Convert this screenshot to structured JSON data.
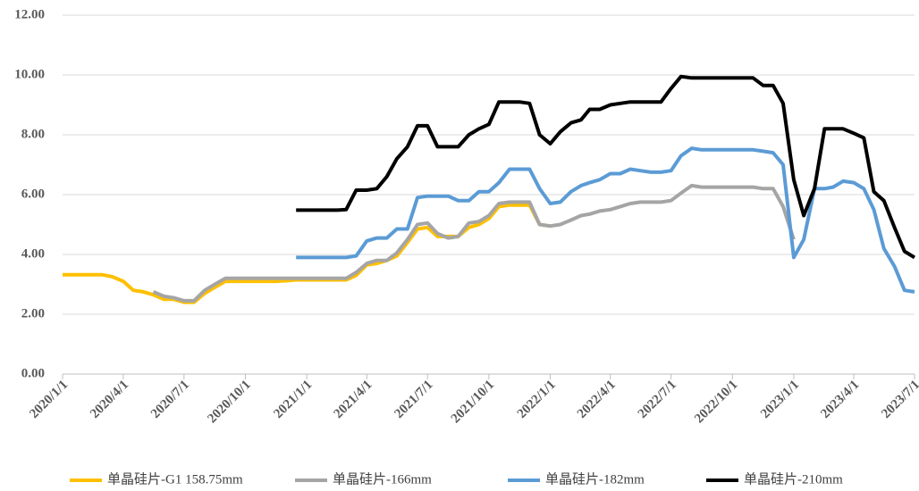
{
  "chart_data": {
    "type": "line",
    "x": [
      "2020/1/1",
      "2020/1/16",
      "2020/2/1",
      "2020/2/16",
      "2020/3/1",
      "2020/3/16",
      "2020/4/1",
      "2020/4/16",
      "2020/5/1",
      "2020/5/16",
      "2020/6/1",
      "2020/6/16",
      "2020/7/1",
      "2020/7/16",
      "2020/8/1",
      "2020/8/16",
      "2020/9/1",
      "2020/9/16",
      "2020/10/1",
      "2020/10/16",
      "2020/11/1",
      "2020/11/16",
      "2020/12/1",
      "2020/12/16",
      "2021/1/1",
      "2021/1/16",
      "2021/2/1",
      "2021/2/16",
      "2021/3/1",
      "2021/3/16",
      "2021/4/1",
      "2021/4/16",
      "2021/5/1",
      "2021/5/16",
      "2021/6/1",
      "2021/6/16",
      "2021/7/1",
      "2021/7/16",
      "2021/8/1",
      "2021/8/16",
      "2021/9/1",
      "2021/9/16",
      "2021/10/1",
      "2021/10/16",
      "2021/11/1",
      "2021/11/16",
      "2021/12/1",
      "2021/12/16",
      "2022/1/1",
      "2022/1/16",
      "2022/2/1",
      "2022/2/16",
      "2022/3/1",
      "2022/3/16",
      "2022/4/1",
      "2022/4/16",
      "2022/5/1",
      "2022/5/16",
      "2022/6/1",
      "2022/6/16",
      "2022/7/1",
      "2022/7/16",
      "2022/8/1",
      "2022/8/16",
      "2022/9/1",
      "2022/9/16",
      "2022/10/1",
      "2022/10/16",
      "2022/11/1",
      "2022/11/16",
      "2022/12/1",
      "2022/12/16",
      "2023/1/1",
      "2023/1/16",
      "2023/2/1",
      "2023/2/16",
      "2023/3/1",
      "2023/3/16",
      "2023/4/1",
      "2023/4/16",
      "2023/5/1",
      "2023/5/16",
      "2023/6/1",
      "2023/6/16",
      "2023/7/1"
    ],
    "series": [
      {
        "name": "单晶硅片-G1 158.75mm",
        "color": "#ffc000",
        "values": [
          3.32,
          3.32,
          3.32,
          3.32,
          3.32,
          3.25,
          3.1,
          2.8,
          2.75,
          2.65,
          2.5,
          2.5,
          2.4,
          2.4,
          2.7,
          2.9,
          3.1,
          3.1,
          3.1,
          3.1,
          3.1,
          3.1,
          3.12,
          3.15,
          3.15,
          3.15,
          3.15,
          3.15,
          3.15,
          3.3,
          3.65,
          3.7,
          3.8,
          3.95,
          4.4,
          4.85,
          4.9,
          4.6,
          4.6,
          4.6,
          4.9,
          5.0,
          5.2,
          5.6,
          5.65,
          5.65,
          5.65,
          5.0,
          4.95,
          null,
          null,
          null,
          null,
          null,
          null,
          null,
          null,
          null,
          null,
          null,
          null,
          null,
          null,
          null,
          null,
          null,
          null,
          null,
          null,
          null,
          null,
          null,
          null,
          null,
          null,
          null,
          null,
          null,
          null,
          null,
          null,
          null,
          null,
          null,
          null
        ]
      },
      {
        "name": "单晶硅片-166mm",
        "color": "#a5a5a5",
        "values": [
          null,
          null,
          null,
          null,
          null,
          null,
          null,
          null,
          null,
          2.75,
          2.6,
          2.55,
          2.45,
          2.45,
          2.8,
          3.0,
          3.2,
          3.2,
          3.2,
          3.2,
          3.2,
          3.2,
          3.2,
          3.2,
          3.2,
          3.2,
          3.2,
          3.2,
          3.2,
          3.4,
          3.7,
          3.8,
          3.8,
          4.05,
          4.5,
          5.0,
          5.05,
          4.7,
          4.55,
          4.6,
          5.05,
          5.1,
          5.3,
          5.7,
          5.75,
          5.75,
          5.75,
          5.0,
          4.95,
          5.0,
          5.15,
          5.3,
          5.35,
          5.45,
          5.5,
          5.6,
          5.7,
          5.75,
          5.75,
          5.75,
          5.8,
          6.05,
          6.3,
          6.25,
          6.25,
          6.25,
          6.25,
          6.25,
          6.25,
          6.2,
          6.2,
          5.6,
          4.5,
          null,
          null,
          null,
          null,
          null,
          null,
          null,
          null,
          null,
          null,
          null,
          null
        ]
      },
      {
        "name": "单晶硅片-182mm",
        "color": "#5b9bd5",
        "values": [
          null,
          null,
          null,
          null,
          null,
          null,
          null,
          null,
          null,
          null,
          null,
          null,
          null,
          null,
          null,
          null,
          null,
          null,
          null,
          null,
          null,
          null,
          null,
          3.9,
          3.9,
          3.9,
          3.9,
          3.9,
          3.9,
          3.95,
          4.45,
          4.55,
          4.55,
          4.85,
          4.85,
          5.9,
          5.95,
          5.95,
          5.95,
          5.8,
          5.8,
          6.1,
          6.1,
          6.4,
          6.85,
          6.85,
          6.85,
          6.2,
          5.7,
          5.75,
          6.1,
          6.3,
          6.4,
          6.5,
          6.7,
          6.7,
          6.85,
          6.8,
          6.75,
          6.75,
          6.8,
          7.3,
          7.55,
          7.5,
          7.5,
          7.5,
          7.5,
          7.5,
          7.5,
          7.45,
          7.4,
          7.0,
          3.9,
          4.5,
          6.2,
          6.2,
          6.25,
          6.45,
          6.4,
          6.2,
          5.5,
          4.2,
          3.6,
          2.8,
          2.75
        ]
      },
      {
        "name": "单晶硅片-210mm",
        "color": "#000000",
        "values": [
          null,
          null,
          null,
          null,
          null,
          null,
          null,
          null,
          null,
          null,
          null,
          null,
          null,
          null,
          null,
          null,
          null,
          null,
          null,
          null,
          null,
          null,
          null,
          5.48,
          5.48,
          5.48,
          5.48,
          5.48,
          5.5,
          6.15,
          6.15,
          6.2,
          6.6,
          7.2,
          7.6,
          8.3,
          8.3,
          7.6,
          7.6,
          7.6,
          8.0,
          8.2,
          8.35,
          9.1,
          9.1,
          9.1,
          9.05,
          8.0,
          7.7,
          8.1,
          8.4,
          8.5,
          8.85,
          8.85,
          9.0,
          9.05,
          9.1,
          9.1,
          9.1,
          9.1,
          9.55,
          9.95,
          9.9,
          9.9,
          9.9,
          9.9,
          9.9,
          9.9,
          9.9,
          9.65,
          9.65,
          9.05,
          6.5,
          5.3,
          6.2,
          8.2,
          8.2,
          8.2,
          8.05,
          7.9,
          6.1,
          5.8,
          4.9,
          4.1,
          3.9
        ]
      }
    ],
    "xlim": [
      "2020/1/1",
      "2023/7/1"
    ],
    "xticks": [
      "2020/1/1",
      "2020/4/1",
      "2020/7/1",
      "2020/10/1",
      "2021/1/1",
      "2021/4/1",
      "2021/7/1",
      "2021/10/1",
      "2022/1/1",
      "2022/4/1",
      "2022/7/1",
      "2022/10/1",
      "2023/1/1",
      "2023/4/1",
      "2023/7/1"
    ],
    "ylim": [
      0,
      12
    ],
    "yticks": [
      {
        "value": 0,
        "label": "0.00"
      },
      {
        "value": 2,
        "label": "2.00"
      },
      {
        "value": 4,
        "label": "4.00"
      },
      {
        "value": 6,
        "label": "6.00"
      },
      {
        "value": 8,
        "label": "8.00"
      },
      {
        "value": 10,
        "label": "10.00"
      },
      {
        "value": 12,
        "label": "12.00"
      }
    ],
    "grid": true,
    "legend": "bottom"
  }
}
